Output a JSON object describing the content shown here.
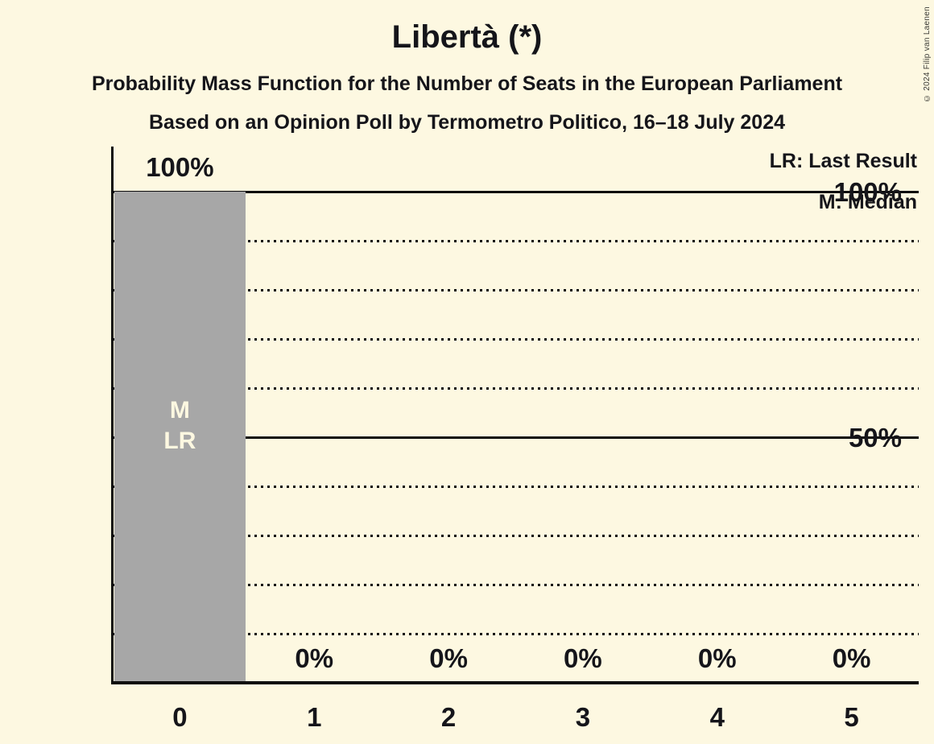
{
  "chart_data": {
    "type": "bar",
    "title": "Libertà (*)",
    "subtitle": "Probability Mass Function for the Number of Seats in the European Parliament",
    "source_line": "Based on an Opinion Poll by Termometro Politico, 16–18 July 2024",
    "copyright": "© 2024 Filip van Laenen",
    "legend": [
      "LR: Last Result",
      "M: Median"
    ],
    "categories": [
      "0",
      "1",
      "2",
      "3",
      "4",
      "5"
    ],
    "values": [
      100,
      0,
      0,
      0,
      0,
      0
    ],
    "value_labels": [
      "100%",
      "0%",
      "0%",
      "0%",
      "0%",
      "0%"
    ],
    "ylim": [
      0,
      100
    ],
    "y_ticks": [
      {
        "label": "100%",
        "pct": 100
      },
      {
        "label": "50%",
        "pct": 50
      }
    ],
    "gridlines": {
      "solid_pct": [
        100,
        50
      ],
      "dotted_pct": [
        90,
        80,
        70,
        60,
        40,
        30,
        20,
        10
      ]
    },
    "markers": {
      "bar_index": 0,
      "lines": [
        "M",
        "LR"
      ]
    },
    "colors": {
      "background": "#fdf8e1",
      "bar": "#a7a7a7",
      "text": "#15151a",
      "line": "#0d0d0d",
      "bar_label_text": "#fdf8e1"
    }
  }
}
